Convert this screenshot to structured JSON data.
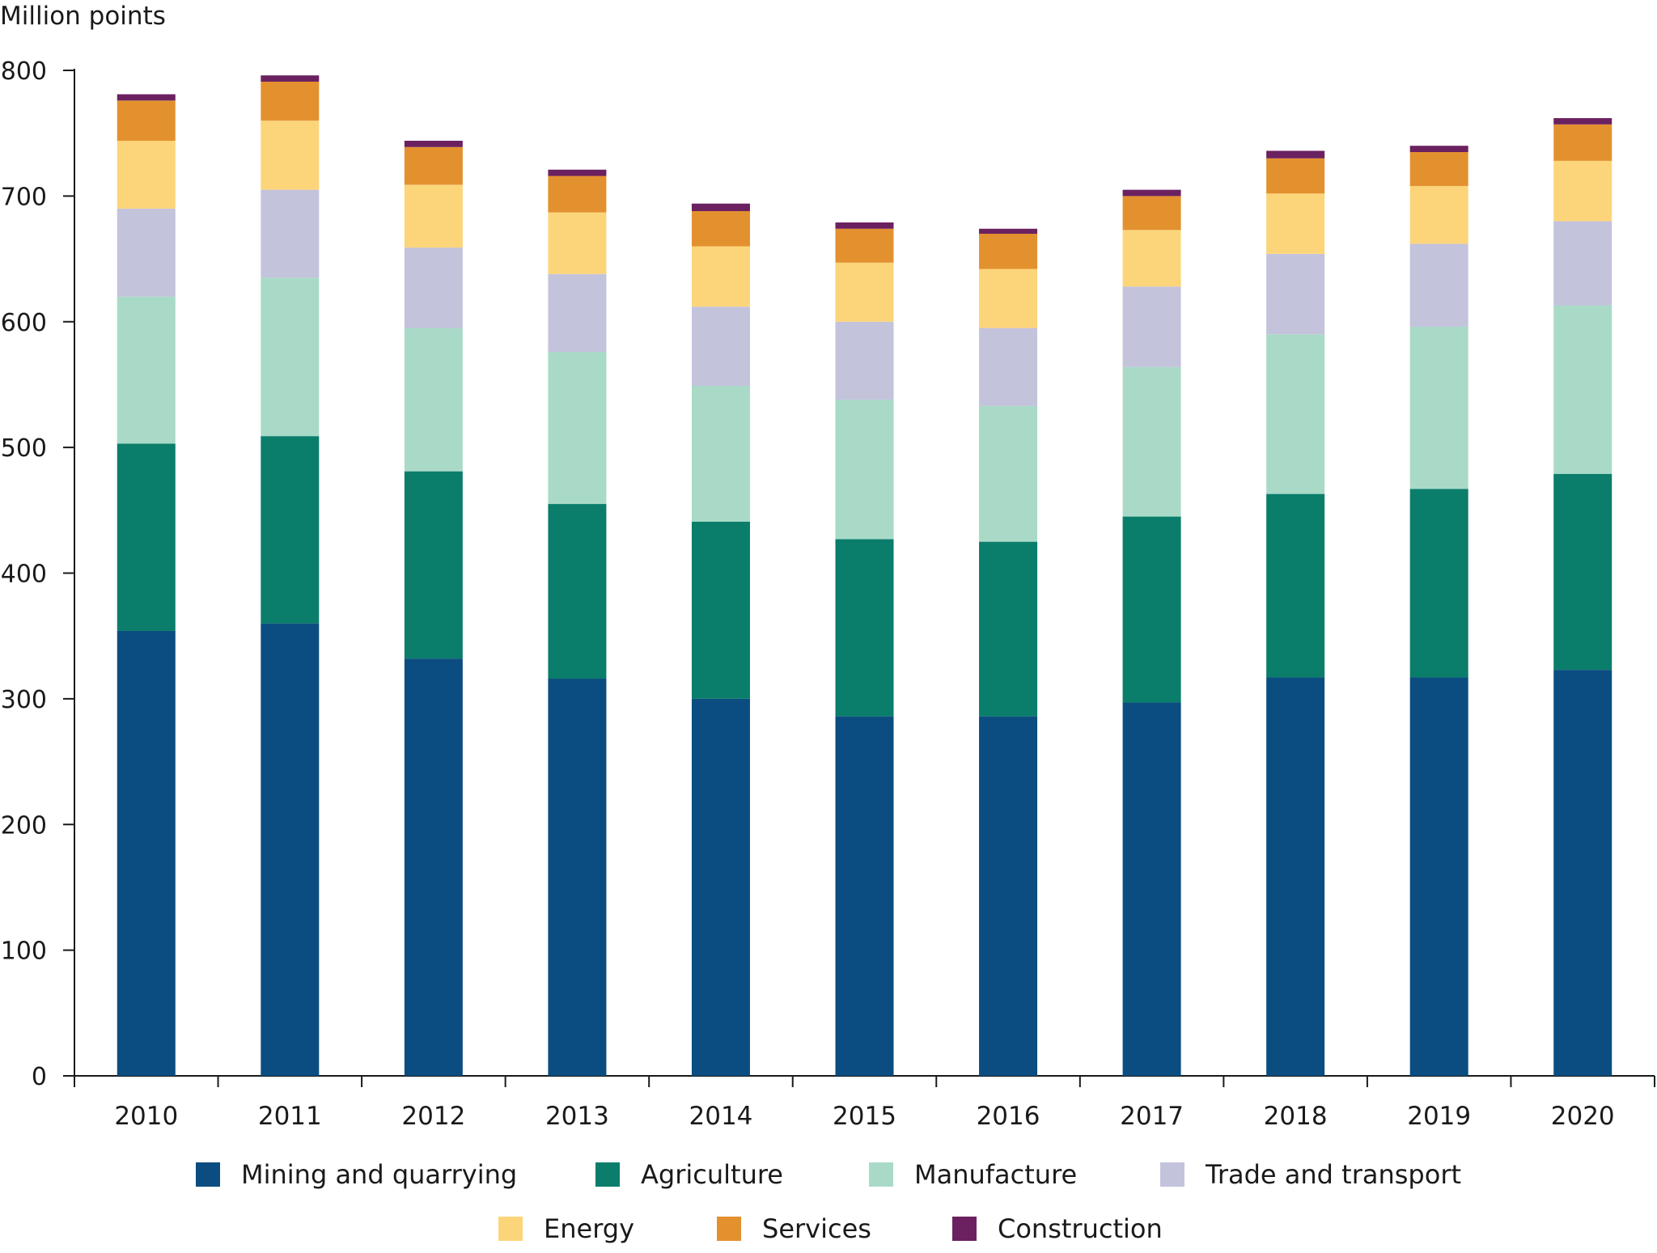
{
  "chart_data": {
    "type": "bar",
    "stacked": true,
    "title": "",
    "ylabel": "Million points",
    "xlabel": "",
    "ylim": [
      0,
      800
    ],
    "yticks": [
      0,
      100,
      200,
      300,
      400,
      500,
      600,
      700,
      800
    ],
    "grid": false,
    "legend_position": "bottom",
    "categories": [
      "2010",
      "2011",
      "2012",
      "2013",
      "2014",
      "2015",
      "2016",
      "2017",
      "2018",
      "2019",
      "2020"
    ],
    "series": [
      {
        "name": "Mining and quarrying",
        "color": "#0b4d80",
        "values": [
          354,
          360,
          332,
          316,
          300,
          286,
          286,
          297,
          317,
          317,
          323
        ]
      },
      {
        "name": "Agriculture",
        "color": "#0b7d6b",
        "values": [
          149,
          149,
          149,
          139,
          141,
          141,
          139,
          148,
          146,
          150,
          156
        ]
      },
      {
        "name": "Manufacture",
        "color": "#a9dac8",
        "values": [
          117,
          126,
          114,
          121,
          108,
          111,
          108,
          119,
          127,
          129,
          134
        ]
      },
      {
        "name": "Trade and transport",
        "color": "#c4c3dc",
        "values": [
          70,
          70,
          64,
          62,
          63,
          62,
          62,
          64,
          64,
          66,
          67
        ]
      },
      {
        "name": "Energy",
        "color": "#fcd57a",
        "values": [
          54,
          55,
          50,
          49,
          48,
          47,
          47,
          45,
          48,
          46,
          48
        ]
      },
      {
        "name": "Services",
        "color": "#e3912f",
        "values": [
          32,
          31,
          30,
          29,
          28,
          27,
          28,
          27,
          28,
          27,
          29
        ]
      },
      {
        "name": "Construction",
        "color": "#6b2160",
        "values": [
          5,
          5,
          5,
          5,
          6,
          5,
          4,
          5,
          6,
          5,
          5
        ]
      }
    ]
  }
}
